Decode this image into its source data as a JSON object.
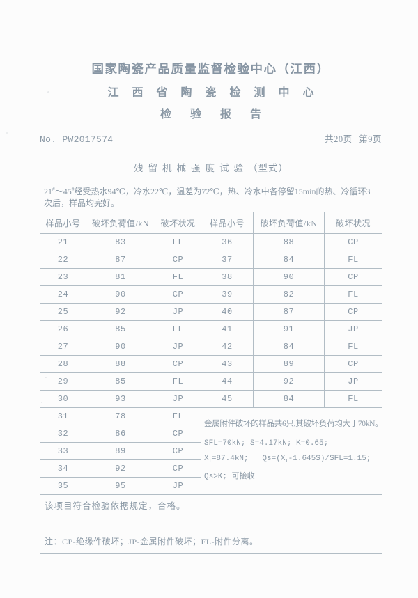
{
  "header": {
    "org_name": "国家陶瓷产品质量监督检验中心（江西）",
    "center_name": "江西省陶瓷检测中心",
    "report_title": "检验报告",
    "report_no": "No. PW2017574",
    "page_indicator": "共20页 第9页"
  },
  "table": {
    "caption_main": "残留机械强度试验",
    "caption_suffix": "（型式）",
    "condition": {
      "seg1": "21",
      "sup1": "#",
      "seg2": "～45",
      "sup2": "#",
      "seg3": "经受热水94℃，冷水22℃，温差为72℃，热、冷水中各停留15min的热、冷循环3次后，样品均完好。"
    },
    "headers": [
      "样品小号",
      "破坏负荷值/kN",
      "破坏状况",
      "样品小号",
      "破坏负荷值/kN",
      "破坏状况"
    ],
    "rows_paired": [
      [
        "21",
        "83",
        "FL",
        "36",
        "88",
        "CP"
      ],
      [
        "22",
        "87",
        "CP",
        "37",
        "84",
        "FL"
      ],
      [
        "23",
        "81",
        "FL",
        "38",
        "90",
        "CP"
      ],
      [
        "24",
        "90",
        "CP",
        "39",
        "82",
        "FL"
      ],
      [
        "25",
        "92",
        "JP",
        "40",
        "87",
        "CP"
      ],
      [
        "26",
        "85",
        "FL",
        "41",
        "91",
        "JP"
      ],
      [
        "27",
        "90",
        "JP",
        "42",
        "84",
        "FL"
      ],
      [
        "28",
        "88",
        "CP",
        "43",
        "89",
        "CP"
      ],
      [
        "29",
        "85",
        "FL",
        "44",
        "92",
        "JP"
      ],
      [
        "30",
        "93",
        "JP",
        "45",
        "84",
        "FL"
      ]
    ],
    "rows_left": [
      [
        "31",
        "78",
        "FL"
      ],
      [
        "32",
        "86",
        "CP"
      ],
      [
        "33",
        "89",
        "CP"
      ],
      [
        "34",
        "92",
        "CP"
      ],
      [
        "35",
        "95",
        "JP"
      ]
    ],
    "analysis": {
      "line1": "金属附件破坏的样品共6只,其破坏负荷均大于70kN。",
      "line2": "SFL=70kN; S=4.17kN; K=0.65;",
      "line3": {
        "x1": "X̄",
        "sub1": "T",
        "mid": "=87.4kN;   Qs=(",
        "x2": "X̄",
        "sub2": "T",
        "tail": "-1.645S)/SFL=1.15;"
      },
      "line4": "Qs>K; 可接收"
    },
    "conclusion": "该项目符合检验依据规定，合格。",
    "note": "注：CP-绝缘件破坏；JP-金属附件破坏；FL-附件分离。"
  },
  "colors": {
    "text": "#8a98a5",
    "border": "#b2bdc5",
    "background": "#fcfcfc"
  }
}
